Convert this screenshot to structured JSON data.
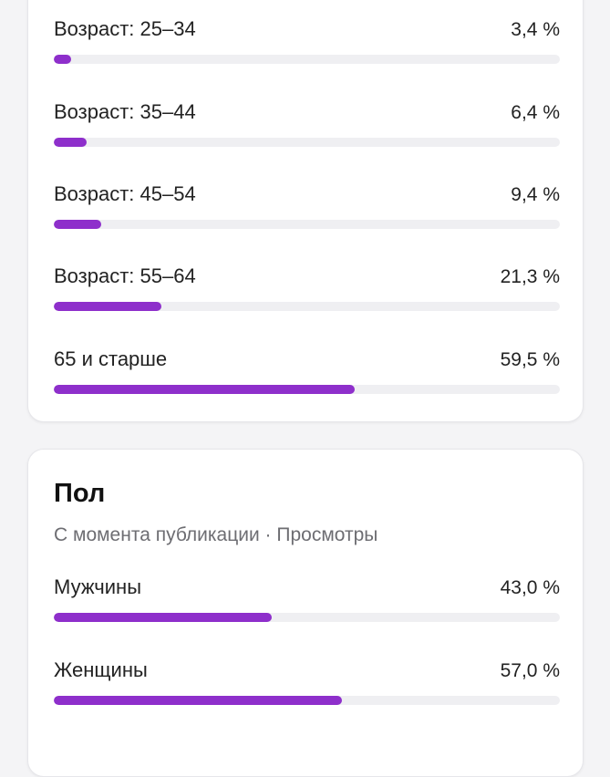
{
  "accent_color": "#8e2fcb",
  "age": {
    "rows": [
      {
        "label": "Возраст: 25–34",
        "value": "3,4 %",
        "percent": 3.4
      },
      {
        "label": "Возраст: 35–44",
        "value": "6,4 %",
        "percent": 6.4
      },
      {
        "label": "Возраст: 45–54",
        "value": "9,4 %",
        "percent": 9.4
      },
      {
        "label": "Возраст: 55–64",
        "value": "21,3 %",
        "percent": 21.3
      },
      {
        "label": "65 и старше",
        "value": "59,5 %",
        "percent": 59.5
      }
    ]
  },
  "gender": {
    "title": "Пол",
    "subtitle": "С момента публикации · Просмотры",
    "rows": [
      {
        "label": "Мужчины",
        "value": "43,0 %",
        "percent": 43.0
      },
      {
        "label": "Женщины",
        "value": "57,0 %",
        "percent": 57.0
      }
    ]
  }
}
